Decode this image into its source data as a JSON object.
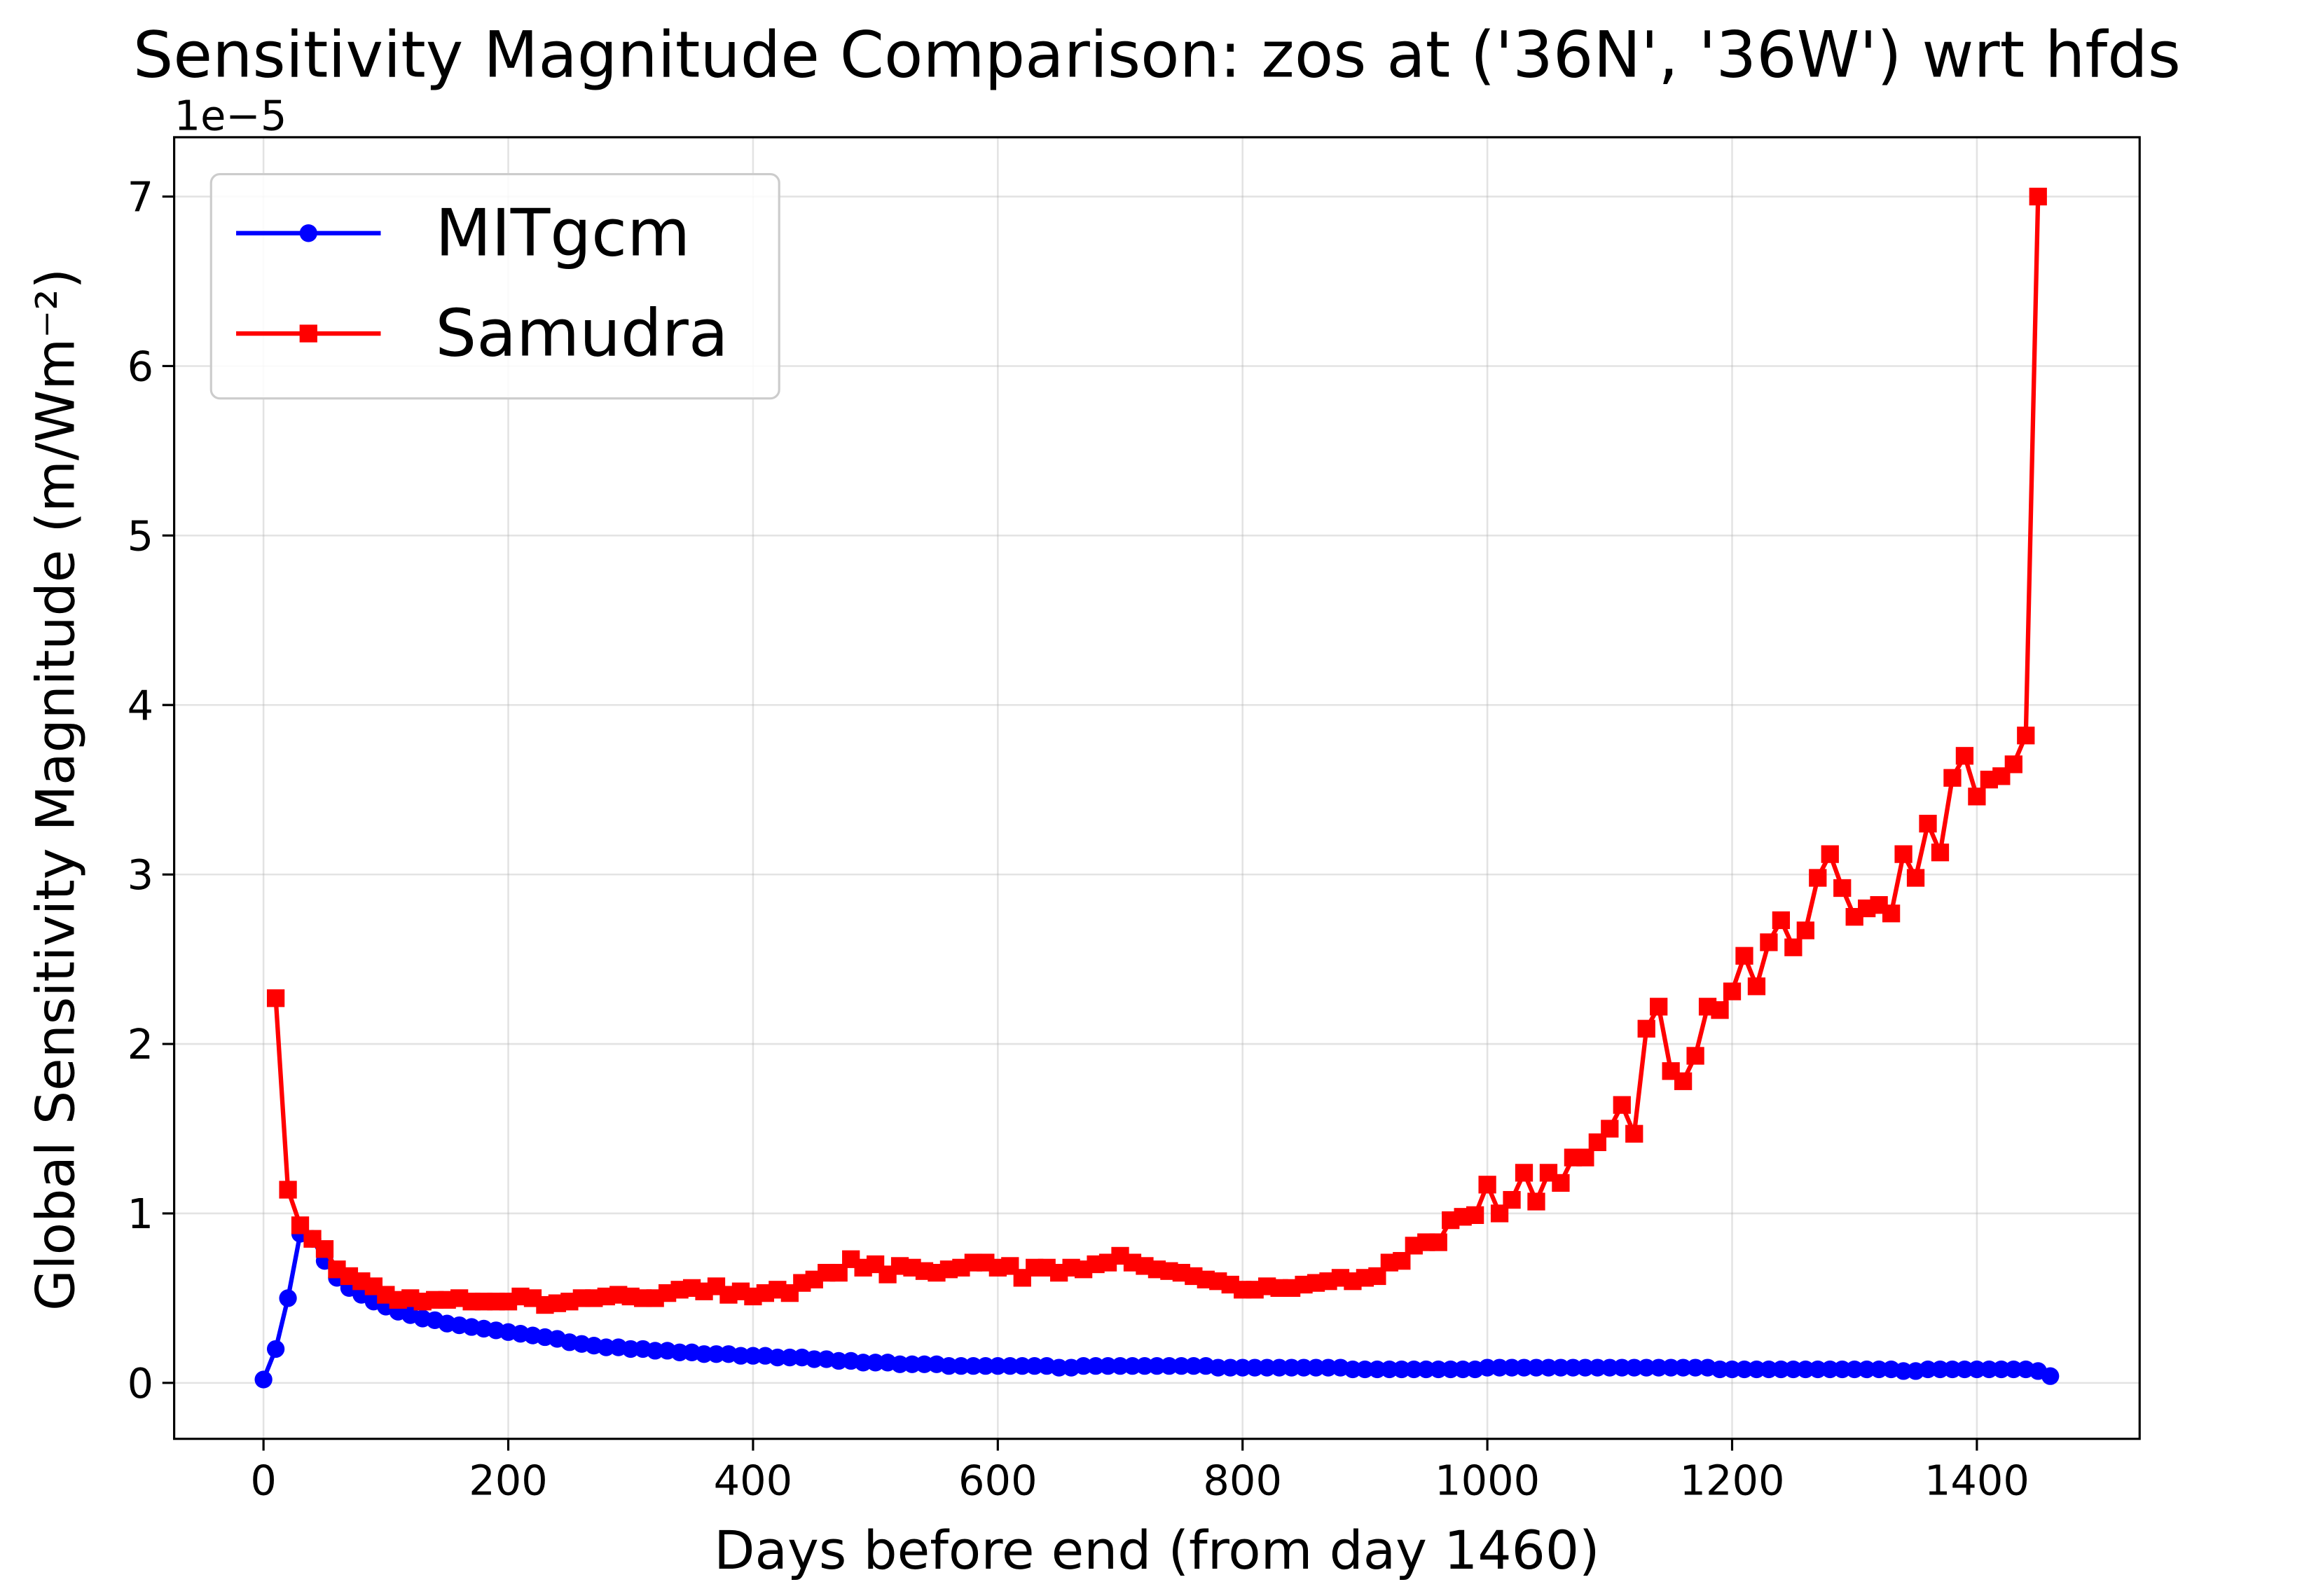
{
  "chart_data": {
    "type": "line",
    "title": "Sensitivity Magnitude Comparison: zos at ('36N', '36W') wrt hfds",
    "x_label": "Days before end (from day 1460)",
    "y_label": "Global Sensitivity Magnitude (m/Wm⁻²)",
    "y_offset_label": "1e−5",
    "x": [
      0,
      10,
      20,
      30,
      40,
      50,
      60,
      70,
      80,
      90,
      100,
      110,
      120,
      130,
      140,
      150,
      160,
      170,
      180,
      190,
      200,
      210,
      220,
      230,
      240,
      250,
      260,
      270,
      280,
      290,
      300,
      310,
      320,
      330,
      340,
      350,
      360,
      370,
      380,
      390,
      400,
      410,
      420,
      430,
      440,
      450,
      460,
      470,
      480,
      490,
      500,
      510,
      520,
      530,
      540,
      550,
      560,
      570,
      580,
      590,
      600,
      610,
      620,
      630,
      640,
      650,
      660,
      670,
      680,
      690,
      700,
      710,
      720,
      730,
      740,
      750,
      760,
      770,
      780,
      790,
      800,
      810,
      820,
      830,
      840,
      850,
      860,
      870,
      880,
      890,
      900,
      910,
      920,
      930,
      940,
      950,
      960,
      970,
      980,
      990,
      1000,
      1010,
      1020,
      1030,
      1040,
      1050,
      1060,
      1070,
      1080,
      1090,
      1100,
      1110,
      1120,
      1130,
      1140,
      1150,
      1160,
      1170,
      1180,
      1190,
      1200,
      1210,
      1220,
      1230,
      1240,
      1250,
      1260,
      1270,
      1280,
      1290,
      1300,
      1310,
      1320,
      1330,
      1340,
      1350,
      1360,
      1370,
      1380,
      1390,
      1400,
      1410,
      1420,
      1430,
      1440,
      1450,
      1460
    ],
    "series": [
      {
        "name": "MITgcm",
        "color": "#0000ff",
        "marker": "circle",
        "values": [
          0.02,
          0.2,
          0.5,
          0.88,
          0.85,
          0.72,
          0.62,
          0.56,
          0.52,
          0.48,
          0.45,
          0.42,
          0.4,
          0.38,
          0.37,
          0.35,
          0.34,
          0.33,
          0.32,
          0.31,
          0.3,
          0.29,
          0.28,
          0.27,
          0.26,
          0.24,
          0.23,
          0.22,
          0.21,
          0.21,
          0.2,
          0.2,
          0.19,
          0.19,
          0.18,
          0.18,
          0.17,
          0.17,
          0.17,
          0.16,
          0.16,
          0.16,
          0.15,
          0.15,
          0.15,
          0.14,
          0.14,
          0.13,
          0.13,
          0.12,
          0.12,
          0.12,
          0.11,
          0.11,
          0.11,
          0.11,
          0.1,
          0.1,
          0.1,
          0.1,
          0.1,
          0.1,
          0.1,
          0.1,
          0.1,
          0.09,
          0.09,
          0.1,
          0.1,
          0.1,
          0.1,
          0.1,
          0.1,
          0.1,
          0.1,
          0.1,
          0.1,
          0.1,
          0.09,
          0.09,
          0.09,
          0.09,
          0.09,
          0.09,
          0.09,
          0.09,
          0.09,
          0.09,
          0.09,
          0.08,
          0.08,
          0.08,
          0.08,
          0.08,
          0.08,
          0.08,
          0.08,
          0.08,
          0.08,
          0.08,
          0.09,
          0.09,
          0.09,
          0.09,
          0.09,
          0.09,
          0.09,
          0.09,
          0.09,
          0.09,
          0.09,
          0.09,
          0.09,
          0.09,
          0.09,
          0.09,
          0.09,
          0.09,
          0.09,
          0.08,
          0.08,
          0.08,
          0.08,
          0.08,
          0.08,
          0.08,
          0.08,
          0.08,
          0.08,
          0.08,
          0.08,
          0.08,
          0.08,
          0.08,
          0.07,
          0.07,
          0.08,
          0.08,
          0.08,
          0.08,
          0.08,
          0.08,
          0.08,
          0.08,
          0.08,
          0.07,
          0.04
        ]
      },
      {
        "name": "Samudra",
        "color": "#ff0000",
        "marker": "square",
        "values": [
          null,
          2.27,
          1.14,
          0.93,
          0.85,
          0.79,
          0.67,
          0.63,
          0.6,
          0.57,
          0.52,
          0.49,
          0.5,
          0.48,
          0.49,
          0.49,
          0.5,
          0.48,
          0.48,
          0.48,
          0.48,
          0.51,
          0.5,
          0.46,
          0.47,
          0.48,
          0.5,
          0.5,
          0.51,
          0.52,
          0.51,
          0.5,
          0.5,
          0.53,
          0.55,
          0.56,
          0.54,
          0.57,
          0.52,
          0.54,
          0.51,
          0.53,
          0.55,
          0.53,
          0.59,
          0.61,
          0.65,
          0.65,
          0.73,
          0.68,
          0.7,
          0.64,
          0.69,
          0.68,
          0.66,
          0.65,
          0.67,
          0.68,
          0.71,
          0.71,
          0.68,
          0.69,
          0.62,
          0.68,
          0.68,
          0.65,
          0.68,
          0.67,
          0.7,
          0.71,
          0.75,
          0.71,
          0.69,
          0.67,
          0.66,
          0.65,
          0.63,
          0.61,
          0.6,
          0.58,
          0.55,
          0.55,
          0.57,
          0.56,
          0.56,
          0.58,
          0.59,
          0.6,
          0.62,
          0.6,
          0.62,
          0.63,
          0.71,
          0.72,
          0.81,
          0.83,
          0.83,
          0.96,
          0.98,
          0.99,
          1.17,
          1.0,
          1.08,
          1.24,
          1.07,
          1.24,
          1.18,
          1.33,
          1.33,
          1.42,
          1.5,
          1.64,
          1.47,
          2.09,
          2.22,
          1.84,
          1.78,
          1.93,
          2.22,
          2.2,
          2.31,
          2.52,
          2.34,
          2.6,
          2.73,
          2.57,
          2.67,
          2.98,
          3.12,
          2.92,
          2.75,
          2.8,
          2.82,
          2.77,
          3.12,
          2.98,
          3.3,
          3.13,
          3.57,
          3.7,
          3.46,
          3.56,
          3.58,
          3.65,
          3.82,
          7.0,
          null
        ]
      }
    ],
    "xlim": [
      -73,
      1533
    ],
    "ylim": [
      -0.33,
      7.35
    ],
    "xticks": [
      0,
      200,
      400,
      600,
      800,
      1000,
      1200,
      1400
    ],
    "yticks": [
      0,
      1,
      2,
      3,
      4,
      5,
      6,
      7
    ],
    "grid": true,
    "legend": "upper left"
  }
}
